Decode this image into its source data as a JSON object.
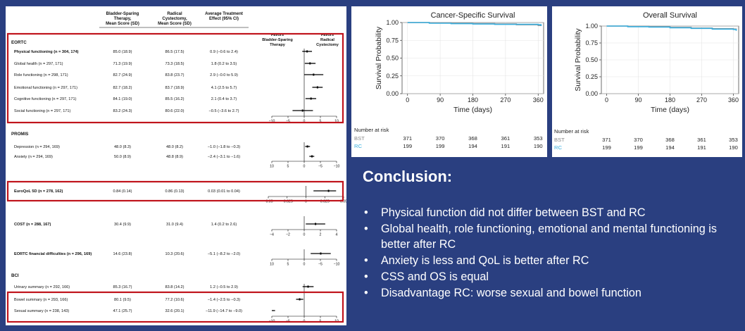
{
  "forest": {
    "headers": {
      "bst": [
        "Bladder-Sparing",
        "Therapy,",
        "Mean Score (SD)"
      ],
      "rc": [
        "Radical",
        "Cystectomy,",
        "Mean Score (SD)"
      ],
      "effect": [
        "Average Treatment",
        "Effect (95% CI)"
      ]
    },
    "favors_bst": [
      "Favors",
      "Bladder-Sparing",
      "Therapy"
    ],
    "favors_rc": [
      "Favors",
      "Radical",
      "Cystectomy"
    ]
  },
  "chart_data": [
    {
      "type": "forest",
      "sections": [
        {
          "title": "EORTC",
          "axis": {
            "range": [
              -10,
              10
            ],
            "ticks": [
              "−10",
              "−5",
              "0",
              "5",
              "10"
            ],
            "reversed": false
          },
          "rows": [
            {
              "label": "Physical functioning (n = 304, 174)",
              "bold": true,
              "bst": "85.0 (18.9)",
              "rc": "86.5 (17.5)",
              "effect": "0.9 (−0.6 to 2.4)",
              "est": 0.9,
              "lo": -0.6,
              "hi": 2.4
            },
            {
              "label": "Global health (n = 297, 171)",
              "bst": "71.3 (19.9)",
              "rc": "73.3 (18.5)",
              "effect": "1.8 (0.2 to 3.5)",
              "est": 1.8,
              "lo": 0.2,
              "hi": 3.5
            },
            {
              "label": "Role functioning (n = 298, 171)",
              "bst": "82.7 (24.9)",
              "rc": "83.8 (23.7)",
              "effect": "2.9 (−0.0 to 5.9)",
              "est": 2.9,
              "lo": 0.0,
              "hi": 5.9
            },
            {
              "label": "Emotional functioning (n = 297, 171)",
              "bst": "82.7 (18.2)",
              "rc": "83.7 (18.9)",
              "effect": "4.1 (2.5 to 5.7)",
              "est": 4.1,
              "lo": 2.5,
              "hi": 5.7
            },
            {
              "label": "Cognitive functioning (n = 297, 171)",
              "bst": "84.1 (19.0)",
              "rc": "85.5 (16.2)",
              "effect": "2.1 (0.4 to 3.7)",
              "est": 2.1,
              "lo": 0.4,
              "hi": 3.7
            },
            {
              "label": "Social functioning (n = 297, 171)",
              "bst": "83.2 (24.3)",
              "rc": "80.6 (22.0)",
              "effect": "−0.5 (−3.6 to 2.7)",
              "est": -0.5,
              "lo": -3.6,
              "hi": 2.7
            }
          ]
        },
        {
          "title": "PROMIS",
          "axis": {
            "range": [
              -10,
              10
            ],
            "ticks": [
              "10",
              "5",
              "0",
              "−5",
              "−10"
            ],
            "reversed": true
          },
          "rows": [
            {
              "label": "Depression (n = 294, 169)",
              "bst": "48.0 (8.3)",
              "rc": "48.0 (8.2)",
              "effect": "−1.0 (−1.8 to −0.3)",
              "est": -1.0,
              "lo": -1.8,
              "hi": -0.3
            },
            {
              "label": "Anxiety (n = 294, 169)",
              "bst": "50.0 (8.9)",
              "rc": "48.8 (8.9)",
              "effect": "−2.4 (−3.1 to −1.6)",
              "est": -2.4,
              "lo": -3.1,
              "hi": -1.6
            }
          ]
        },
        {
          "title": "",
          "axis": {
            "range": [
              -0.05,
              0.05
            ],
            "ticks": [
              "−0.05",
              "−0.025",
              "0",
              "0.025",
              "0.05"
            ],
            "reversed": false
          },
          "rows": [
            {
              "label": "EuroQoL 5D (n = 278, 162)",
              "bold": true,
              "bst": "0.84 (0.14)",
              "rc": "0.86 (0.13)",
              "effect": "0.03 (0.01 to 0.04)",
              "est": 0.03,
              "lo": 0.01,
              "hi": 0.04
            }
          ]
        },
        {
          "title": "",
          "axis": {
            "range": [
              -4,
              4
            ],
            "ticks": [
              "−4",
              "−2",
              "0",
              "2",
              "4"
            ],
            "reversed": false
          },
          "rows": [
            {
              "label": "COST (n = 288, 167)",
              "bold": true,
              "bst": "30.4 (9.9)",
              "rc": "31.0 (9.4)",
              "effect": "1.4 (0.2 to 2.6)",
              "est": 1.4,
              "lo": 0.2,
              "hi": 2.6
            }
          ]
        },
        {
          "title": "",
          "axis": {
            "range": [
              -10,
              10
            ],
            "ticks": [
              "10",
              "5",
              "0",
              "−5",
              "−10"
            ],
            "reversed": true
          },
          "rows": [
            {
              "label": "EORTC financial difficulties (n = 296, 169)",
              "bold": true,
              "bst": "14.6 (23.8)",
              "rc": "10.3 (20.6)",
              "effect": "−5.1 (−8.2 to −2.0)",
              "est": -5.1,
              "lo": -8.2,
              "hi": -2.0
            }
          ]
        },
        {
          "title": "BCI",
          "axis": {
            "range": [
              -10,
              10
            ],
            "ticks": [
              "−10",
              "−5",
              "0",
              "5",
              "10"
            ],
            "reversed": false
          },
          "rows": [
            {
              "label": "Urinary summary (n = 292, 166)",
              "bst": "85.3 (16.7)",
              "rc": "83.8 (14.2)",
              "effect": "1.2 (−0.5 to 2.9)",
              "est": 1.2,
              "lo": -0.5,
              "hi": 2.9
            },
            {
              "label": "Bowel summary (n = 293, 166)",
              "bst": "80.1 (9.5)",
              "rc": "77.2 (10.6)",
              "effect": "−1.4 (−2.5 to −0.3)",
              "est": -1.4,
              "lo": -2.5,
              "hi": -0.3
            },
            {
              "label": "Sexual summary (n = 238, 143)",
              "bst": "47.1 (25.7)",
              "rc": "32.6 (20.1)",
              "effect": "−11.9 (−14.7 to −9.0)",
              "est": -11.9,
              "lo": -14.7,
              "hi": -9.0
            }
          ]
        }
      ]
    },
    {
      "type": "line",
      "title": "Cancer-Specific Survival",
      "xlabel": "Time (days)",
      "ylabel": "Survival Probability",
      "xlim": [
        -15,
        375
      ],
      "ylim": [
        0,
        1
      ],
      "xticks": [
        0,
        90,
        180,
        270,
        360
      ],
      "yticks": [
        "0.00",
        "0.25",
        "0.50",
        "0.75",
        "1.00"
      ],
      "series": [
        {
          "name": "BST",
          "color": "#888888",
          "x": [
            0,
            60,
            120,
            180,
            240,
            300,
            360,
            368
          ],
          "y": [
            1.0,
            0.995,
            0.99,
            0.985,
            0.98,
            0.97,
            0.96,
            0.96
          ]
        },
        {
          "name": "RC",
          "color": "#3ab0e0",
          "x": [
            0,
            60,
            120,
            180,
            240,
            300,
            360,
            368
          ],
          "y": [
            1.0,
            0.99,
            0.985,
            0.98,
            0.975,
            0.975,
            0.97,
            0.95
          ]
        }
      ],
      "risk_table": {
        "title": "Number at risk",
        "rows": [
          {
            "name": "BST",
            "values": [
              "371",
              "370",
              "368",
              "361",
              "353"
            ]
          },
          {
            "name": "RC",
            "values": [
              "199",
              "199",
              "194",
              "191",
              "190"
            ]
          }
        ]
      }
    },
    {
      "type": "line",
      "title": "Overall Survival",
      "xlabel": "Time (days)",
      "ylabel": "Survival Probability",
      "xlim": [
        -15,
        375
      ],
      "ylim": [
        0,
        1
      ],
      "xticks": [
        0,
        90,
        180,
        270,
        360
      ],
      "yticks": [
        "0.00",
        "0.25",
        "0.50",
        "0.75",
        "1.00"
      ],
      "series": [
        {
          "name": "BST",
          "color": "#888888",
          "x": [
            0,
            60,
            120,
            180,
            240,
            300,
            360,
            368
          ],
          "y": [
            1.0,
            0.995,
            0.99,
            0.98,
            0.97,
            0.96,
            0.955,
            0.95
          ]
        },
        {
          "name": "RC",
          "color": "#3ab0e0",
          "x": [
            0,
            60,
            120,
            180,
            240,
            300,
            360,
            368
          ],
          "y": [
            1.0,
            0.99,
            0.985,
            0.975,
            0.965,
            0.955,
            0.95,
            0.93
          ]
        }
      ],
      "risk_table": {
        "title": "Number at risk",
        "rows": [
          {
            "name": "BST",
            "values": [
              "371",
              "370",
              "368",
              "361",
              "353"
            ]
          },
          {
            "name": "RC",
            "values": [
              "199",
              "199",
              "194",
              "191",
              "190"
            ]
          }
        ]
      }
    }
  ],
  "conclusion": {
    "title": "Conclusion:",
    "bullets": [
      "Physical function did not differ between BST and RC",
      "Global health, role functioning, emotional and mental functioning is better after RC",
      "Anxiety is less and QoL is better after RC",
      "CSS and OS is equal",
      "Disadvantage RC: worse sexual and bowel function"
    ]
  },
  "colors": {
    "background": "#2a3f80",
    "highlight": "#c0141c",
    "rc": "#3ab0e0",
    "bst": "#888888"
  }
}
